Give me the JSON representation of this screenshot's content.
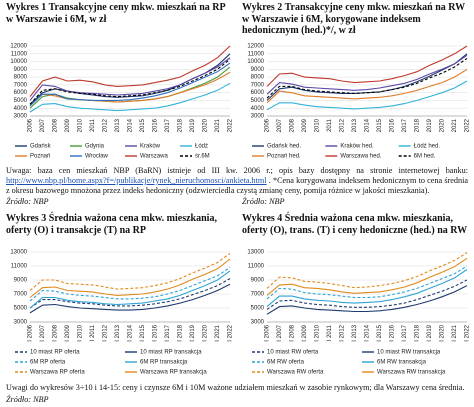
{
  "chart_data": [
    {
      "type": "line",
      "title": "Wykres 1 Transakcyjne ceny mkw. mieszkań na RP w Warszawie i 6M, w zł",
      "categories": [
        "2006",
        "2007",
        "2008",
        "2009",
        "2010",
        "2011",
        "2012",
        "2013",
        "2014",
        "2015",
        "2016",
        "2017",
        "2018",
        "2019",
        "2020",
        "2021",
        "2022"
      ],
      "ylim": [
        3000,
        12000
      ],
      "yticks": [
        3000,
        4000,
        5000,
        6000,
        7000,
        8000,
        9000,
        10000,
        11000,
        12000
      ],
      "grid": true,
      "series": [
        {
          "name": "Gdańsk",
          "color": "#1f3a6e",
          "values": [
            4500,
            6000,
            6500,
            6200,
            5900,
            5700,
            5500,
            5400,
            5500,
            5600,
            5900,
            6300,
            7000,
            7800,
            8500,
            9500,
            11000
          ]
        },
        {
          "name": "Gdynia",
          "color": "#4a9a3c",
          "values": [
            4000,
            5500,
            5800,
            5300,
            5100,
            5000,
            4900,
            4800,
            4900,
            5000,
            5200,
            5500,
            6000,
            6600,
            7200,
            8000,
            9300
          ]
        },
        {
          "name": "Kraków",
          "color": "#5b4aa8",
          "values": [
            5000,
            7000,
            6800,
            6200,
            6000,
            5900,
            5800,
            5700,
            5800,
            5900,
            6200,
            6500,
            7000,
            7800,
            8500,
            9300,
            10500
          ]
        },
        {
          "name": "Łódź",
          "color": "#2fb3d6",
          "values": [
            3500,
            4500,
            4600,
            4200,
            4000,
            3900,
            3800,
            3700,
            3800,
            3900,
            4000,
            4300,
            4700,
            5200,
            5700,
            6300,
            7200
          ]
        },
        {
          "name": "Poznań",
          "color": "#e07b2a",
          "values": [
            4300,
            5800,
            5600,
            5200,
            5100,
            5000,
            4900,
            4800,
            4900,
            5000,
            5200,
            5500,
            6000,
            6500,
            7000,
            7700,
            8600
          ]
        },
        {
          "name": "Wrocław",
          "color": "#2e6fc1",
          "values": [
            4300,
            5800,
            5800,
            5200,
            5100,
            5000,
            5000,
            5000,
            5100,
            5300,
            5600,
            6000,
            6600,
            7300,
            8000,
            8700,
            9800
          ]
        },
        {
          "name": "Warszawa",
          "color": "#c0392b",
          "values": [
            5500,
            7500,
            8000,
            7500,
            7600,
            7400,
            7000,
            6800,
            6900,
            7000,
            7300,
            7600,
            8000,
            8800,
            9500,
            10500,
            12000
          ]
        },
        {
          "name": "śr.6M",
          "color": "#000000",
          "dashed": true,
          "values": [
            4500,
            6300,
            6500,
            6100,
            5900,
            5800,
            5600,
            5500,
            5600,
            5700,
            6000,
            6300,
            6800,
            7500,
            8200,
            9000,
            10300
          ]
        }
      ]
    },
    {
      "type": "line",
      "title": "Wykres 2 Transakcyjne ceny mkw. mieszkań na RW w Warszawie i 6M, korygowane indeksem hedonicznym (hed.)*/, w zł",
      "categories": [
        "2006",
        "2007",
        "2008",
        "2009",
        "2010",
        "2011",
        "2012",
        "2013",
        "2014",
        "2015",
        "2016",
        "2017",
        "2018",
        "2019",
        "2020",
        "2021",
        "2022"
      ],
      "ylim": [
        3000,
        12000
      ],
      "yticks": [
        3000,
        4000,
        5000,
        6000,
        7000,
        8000,
        9000,
        10000,
        11000,
        12000
      ],
      "grid": true,
      "series": [
        {
          "name": "Gdańsk hed.",
          "color": "#1f3a6e",
          "values": [
            5000,
            6500,
            6700,
            6300,
            6100,
            6000,
            5900,
            5900,
            6000,
            6100,
            6400,
            6800,
            7400,
            8100,
            8900,
            9700,
            11000
          ]
        },
        {
          "name": "Kraków hed.",
          "color": "#5b4aa8",
          "values": [
            5800,
            7300,
            7100,
            6700,
            6600,
            6500,
            6400,
            6300,
            6400,
            6600,
            6900,
            7200,
            7700,
            8400,
            9000,
            9700,
            10800
          ]
        },
        {
          "name": "Łódź hed.",
          "color": "#2fb3d6",
          "values": [
            3800,
            4700,
            4700,
            4400,
            4200,
            4100,
            4000,
            3900,
            4000,
            4100,
            4300,
            4600,
            5000,
            5500,
            6000,
            6600,
            7500
          ]
        },
        {
          "name": "Poznań hed.",
          "color": "#e07b2a",
          "values": [
            4700,
            6200,
            6000,
            5600,
            5500,
            5400,
            5300,
            5200,
            5300,
            5400,
            5600,
            5900,
            6300,
            6800,
            7300,
            8000,
            9000
          ]
        },
        {
          "name": "Warszawa hed.",
          "color": "#c0392b",
          "values": [
            6800,
            8400,
            8500,
            8000,
            7900,
            7800,
            7500,
            7300,
            7400,
            7500,
            7800,
            8200,
            8700,
            9500,
            10200,
            11000,
            12000
          ]
        },
        {
          "name": "6M hed.",
          "color": "#000000",
          "dashed": true,
          "values": [
            5300,
            6800,
            6800,
            6400,
            6200,
            6100,
            6000,
            5900,
            6000,
            6100,
            6400,
            6700,
            7200,
            7900,
            8500,
            9300,
            10400
          ]
        }
      ]
    },
    {
      "type": "line",
      "title": "Wykres 3 Średnia ważona cena mkw. mieszkania, oferty (O) i transakcje (T) na RP",
      "categories": [
        "I 2006",
        "I 2007",
        "I 2008",
        "I 2009",
        "I 2010",
        "I 2011",
        "I 2012",
        "I 2013",
        "I 2014",
        "I 2015",
        "I 2016",
        "I 2017",
        "I 2018",
        "I 2019",
        "I 2020",
        "I 2021",
        "I 2022"
      ],
      "ylim": [
        3000,
        13000
      ],
      "yticks": [
        3000,
        5000,
        7000,
        9000,
        11000,
        13000
      ],
      "grid": true,
      "series": [
        {
          "name": "10 miast RP oferta",
          "color": "#1f3a6e",
          "dashed": true,
          "values": [
            5000,
            6200,
            6200,
            5900,
            5700,
            5600,
            5400,
            5300,
            5300,
            5400,
            5600,
            5900,
            6300,
            6900,
            7500,
            8200,
            9200
          ]
        },
        {
          "name": "10 miast RP transakcja",
          "color": "#1f3a6e",
          "values": [
            4300,
            5400,
            5500,
            5200,
            5000,
            4900,
            4800,
            4700,
            4700,
            4800,
            5000,
            5300,
            5700,
            6200,
            6800,
            7500,
            8400
          ]
        },
        {
          "name": "6M RP oferta",
          "color": "#2fa4d6",
          "dashed": true,
          "values": [
            6000,
            7500,
            7400,
            7000,
            6800,
            6700,
            6500,
            6300,
            6300,
            6400,
            6600,
            7000,
            7500,
            8200,
            8900,
            9600,
            10800
          ]
        },
        {
          "name": "6M RP transakcja",
          "color": "#2fa4d6",
          "values": [
            5000,
            6500,
            6500,
            6100,
            5900,
            5800,
            5600,
            5500,
            5600,
            5700,
            6000,
            6300,
            6800,
            7500,
            8200,
            9000,
            10300
          ]
        },
        {
          "name": "Warszawa RP oferta",
          "color": "#e08a1e",
          "dashed": true,
          "values": [
            7500,
            9000,
            9000,
            8500,
            8400,
            8300,
            8000,
            7700,
            7800,
            7900,
            8200,
            8600,
            9200,
            10000,
            10700,
            11500,
            12800
          ]
        },
        {
          "name": "Warszawa RP transakcja",
          "color": "#e08a1e",
          "values": [
            6500,
            7900,
            8000,
            7500,
            7400,
            7300,
            7000,
            6800,
            6900,
            7000,
            7300,
            7700,
            8300,
            9100,
            9800,
            10600,
            12000
          ]
        }
      ]
    },
    {
      "type": "line",
      "title": "Wykres 4 Średnia ważona cena mkw. mieszkania, oferty (O), trans. (T) i ceny hedoniczne (hed.) na RW",
      "categories": [
        "I 2006",
        "I 2007",
        "I 2008",
        "I 2009",
        "I 2010",
        "I 2011",
        "I 2012",
        "I 2013",
        "I 2014",
        "I 2015",
        "I 2016",
        "I 2017",
        "I 2018",
        "I 2019",
        "I 2020",
        "I 2021",
        "I 2022"
      ],
      "ylim": [
        3000,
        13000
      ],
      "yticks": [
        3000,
        5000,
        7000,
        9000,
        11000,
        13000
      ],
      "grid": true,
      "series": [
        {
          "name": "10 miast RW oferta",
          "color": "#1f3a6e",
          "dashed": true,
          "values": [
            4800,
            6000,
            6100,
            5700,
            5500,
            5400,
            5200,
            5100,
            5100,
            5200,
            5400,
            5700,
            6200,
            6800,
            7400,
            8100,
            9000
          ]
        },
        {
          "name": "10 miast RW transakcja",
          "color": "#1f3a6e",
          "values": [
            4100,
            5200,
            5300,
            5000,
            4800,
            4700,
            4600,
            4500,
            4500,
            4600,
            4800,
            5100,
            5500,
            6000,
            6600,
            7300,
            8200
          ]
        },
        {
          "name": "6M RW oferta",
          "color": "#2fa4d6",
          "dashed": true,
          "values": [
            6300,
            7800,
            7700,
            7200,
            7000,
            6900,
            6700,
            6500,
            6500,
            6600,
            6900,
            7300,
            7800,
            8500,
            9200,
            9900,
            11000
          ]
        },
        {
          "name": "6M RW transakcja",
          "color": "#2fa4d6",
          "values": [
            5200,
            6700,
            6700,
            6300,
            6100,
            6000,
            5800,
            5700,
            5800,
            5900,
            6200,
            6600,
            7100,
            7800,
            8500,
            9300,
            10500
          ]
        },
        {
          "name": "Warszawa RW oferta",
          "color": "#e08a1e",
          "dashed": true,
          "values": [
            7800,
            9400,
            9300,
            8800,
            8700,
            8500,
            8200,
            7900,
            8000,
            8200,
            8500,
            8900,
            9500,
            10300,
            11000,
            11800,
            12900
          ]
        },
        {
          "name": "Warszawa RW transakcja",
          "color": "#e08a1e",
          "values": [
            6800,
            8300,
            8400,
            7900,
            7800,
            7600,
            7300,
            7100,
            7200,
            7300,
            7600,
            8000,
            8600,
            9400,
            10100,
            10900,
            12100
          ]
        }
      ]
    }
  ],
  "notes": {
    "top_before": "Uwaga: baza cen mieszkań NBP (BaRN) istnieje od III kw. 2006 r.; opis bazy dostępny na stronie internetowej banku: ",
    "top_link": "http://www.nbp.pl/home.aspx?f=/publikacje/rynek_nieruchomosci/ankieta.html",
    "top_after": " . *Cena korygowana indeksem hedonicznym to cena średnia z okresu bazowego mnożona przez indeks hedoniczny (odzwierciedla czystą zmianę ceny, pomija różnice w jakości mieszkania).",
    "bottom": "Uwagi do wykresów 3÷10 i 14-15: ceny i czynsze 6M i 10M ważone udziałem mieszkań w zasobie rynkowym; dla Warszawy cena średnia."
  },
  "sources": [
    "Źródło: NBP",
    "Źródło: NBP",
    "Źródło: NBP"
  ]
}
